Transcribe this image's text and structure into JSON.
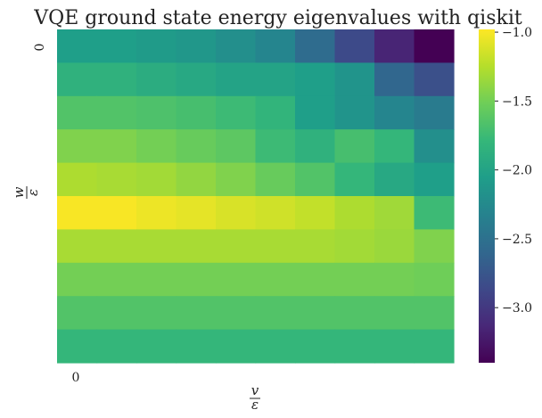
{
  "chart_data": {
    "type": "heatmap",
    "title": "VQE ground state energy eigenvalues with qiskit",
    "xlabel": {
      "numerator": "v",
      "denominator": "ε"
    },
    "ylabel": {
      "numerator": "w",
      "denominator": "ε"
    },
    "x_tick_labels": [
      "0"
    ],
    "y_tick_labels": [
      "0"
    ],
    "rows": 10,
    "cols": 10,
    "values": [
      [
        -2.05,
        -2.05,
        -2.08,
        -2.12,
        -2.2,
        -2.3,
        -2.55,
        -2.85,
        -3.15,
        -3.4
      ],
      [
        -1.85,
        -1.85,
        -1.9,
        -1.95,
        -2.0,
        -2.0,
        -2.05,
        -2.15,
        -2.6,
        -2.8
      ],
      [
        -1.65,
        -1.65,
        -1.67,
        -1.7,
        -1.75,
        -1.82,
        -2.05,
        -2.15,
        -2.3,
        -2.4
      ],
      [
        -1.45,
        -1.45,
        -1.5,
        -1.55,
        -1.6,
        -1.75,
        -1.85,
        -1.7,
        -1.8,
        -2.2
      ],
      [
        -1.28,
        -1.3,
        -1.32,
        -1.38,
        -1.45,
        -1.55,
        -1.65,
        -1.8,
        -1.95,
        -2.05
      ],
      [
        -1.0,
        -1.0,
        -1.04,
        -1.07,
        -1.12,
        -1.15,
        -1.2,
        -1.28,
        -1.33,
        -1.75
      ],
      [
        -1.3,
        -1.3,
        -1.3,
        -1.3,
        -1.3,
        -1.3,
        -1.3,
        -1.32,
        -1.35,
        -1.45
      ],
      [
        -1.5,
        -1.5,
        -1.5,
        -1.5,
        -1.5,
        -1.5,
        -1.5,
        -1.5,
        -1.5,
        -1.52
      ],
      [
        -1.65,
        -1.65,
        -1.65,
        -1.65,
        -1.65,
        -1.65,
        -1.65,
        -1.65,
        -1.65,
        -1.65
      ],
      [
        -1.8,
        -1.8,
        -1.8,
        -1.8,
        -1.8,
        -1.8,
        -1.8,
        -1.8,
        -1.8,
        -1.8
      ]
    ],
    "colorbar": {
      "min": -3.4,
      "max": -0.98,
      "ticks": [
        -3.0,
        -2.5,
        -2.0,
        -1.5,
        -1.0
      ],
      "tick_labels": [
        "−3.0",
        "−2.5",
        "−2.0",
        "−1.5",
        "−1.0"
      ],
      "colormap": "viridis",
      "colormap_stops": [
        "#440154",
        "#482878",
        "#3e4989",
        "#31688e",
        "#26828e",
        "#1f9e89",
        "#35b779",
        "#6ece58",
        "#b5de2b",
        "#fde725"
      ]
    },
    "grid": false
  }
}
